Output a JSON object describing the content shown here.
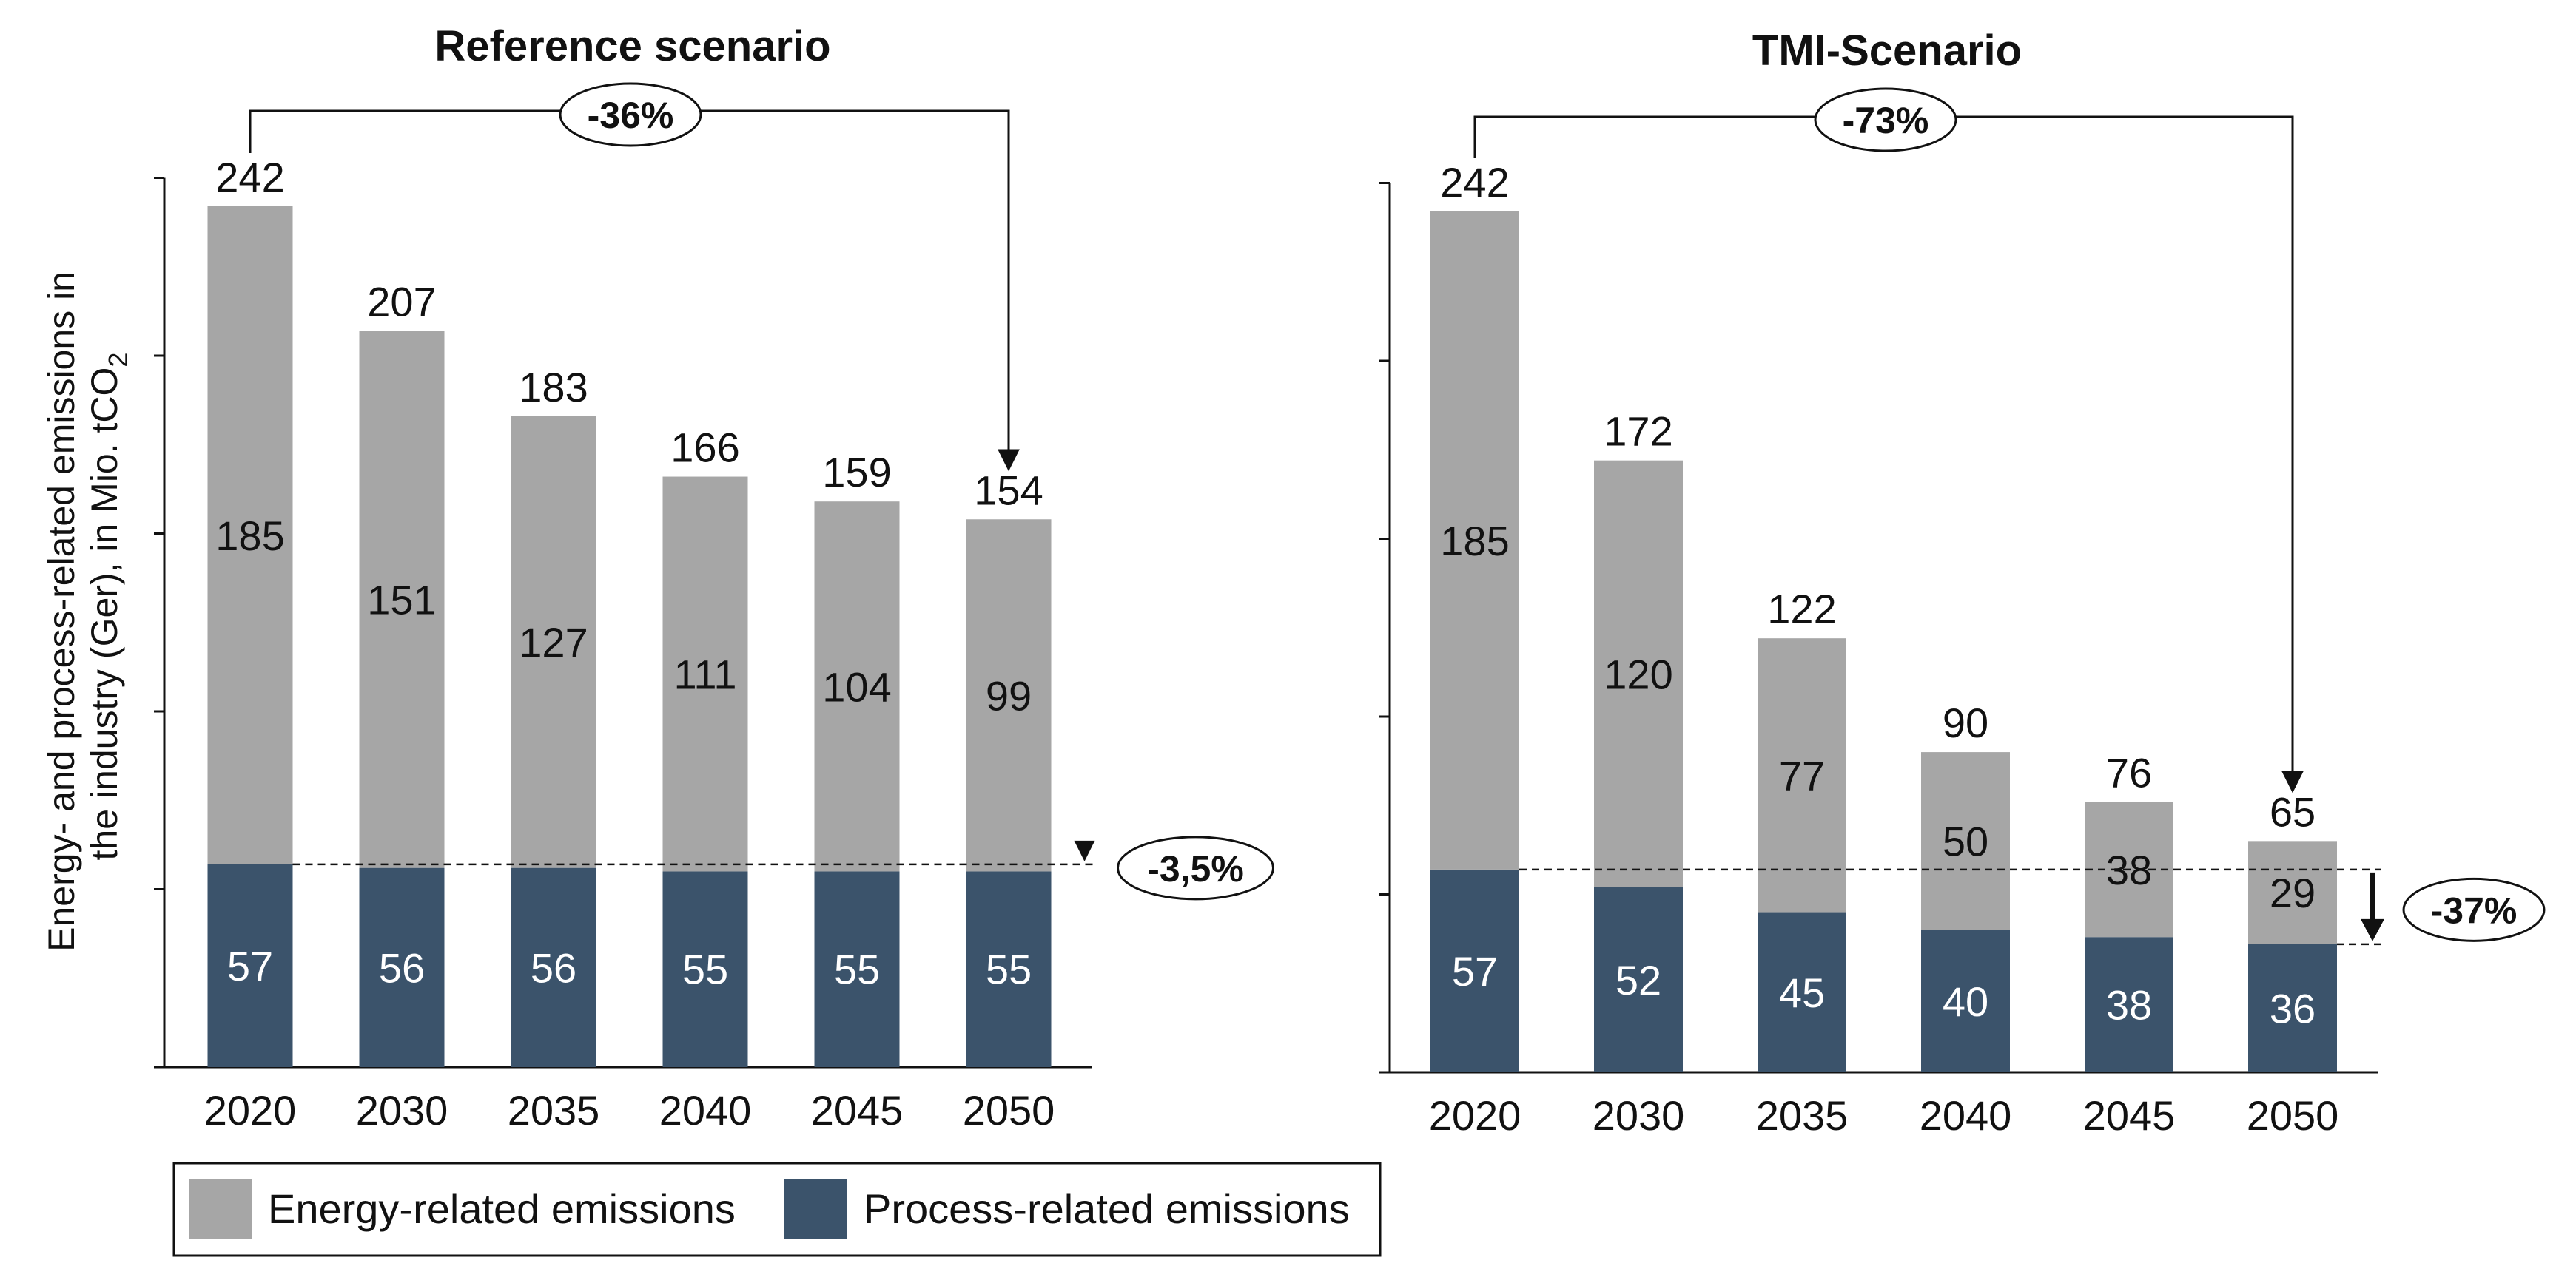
{
  "chart_data": [
    {
      "type": "bar",
      "stacked": true,
      "title": "Reference scenario",
      "categories": [
        "2020",
        "2030",
        "2035",
        "2040",
        "2045",
        "2050"
      ],
      "series": [
        {
          "name": "Process-related emissions",
          "values": [
            57,
            56,
            56,
            55,
            55,
            55
          ]
        },
        {
          "name": "Energy-related emissions",
          "values": [
            185,
            151,
            127,
            111,
            104,
            99
          ]
        }
      ],
      "totals": [
        242,
        207,
        183,
        166,
        159,
        154
      ],
      "ylim": [
        0,
        250
      ],
      "ylabel": "Energy- and process-related emissions in the industry (Ger), in Mio. tCO2",
      "annotations": {
        "overall_change": "-36%",
        "process_change": "-3,5%"
      }
    },
    {
      "type": "bar",
      "stacked": true,
      "title": "TMI-Scenario",
      "categories": [
        "2020",
        "2030",
        "2035",
        "2040",
        "2045",
        "2050"
      ],
      "series": [
        {
          "name": "Process-related emissions",
          "values": [
            57,
            52,
            45,
            40,
            38,
            36
          ]
        },
        {
          "name": "Energy-related emissions",
          "values": [
            185,
            120,
            77,
            50,
            38,
            29
          ]
        }
      ],
      "totals": [
        242,
        172,
        122,
        90,
        76,
        65
      ],
      "ylim": [
        0,
        250
      ],
      "annotations": {
        "overall_change": "-73%",
        "process_change": "-37%"
      }
    }
  ],
  "ylabel_parts": {
    "line1": "Energy- and process-related emissions in",
    "line2": "the industry (Ger), in Mio. tCO",
    "subscript": "2"
  },
  "legend": [
    {
      "label": "Energy-related emissions",
      "color": "#a6a6a6"
    },
    {
      "label": "Process-related emissions",
      "color": "#3b536b"
    }
  ],
  "colors": {
    "energy": "#a6a6a6",
    "process": "#3b536b"
  }
}
